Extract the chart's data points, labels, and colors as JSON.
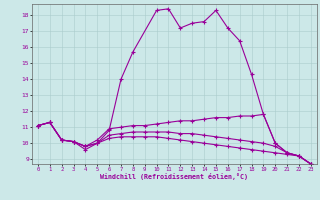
{
  "xlabel": "Windchill (Refroidissement éolien,°C)",
  "bg_color": "#cce8e8",
  "line_color": "#990099",
  "xlim": [
    -0.5,
    23.5
  ],
  "ylim": [
    8.7,
    18.7
  ],
  "yticks": [
    9,
    10,
    11,
    12,
    13,
    14,
    15,
    16,
    17,
    18
  ],
  "xticks": [
    0,
    1,
    2,
    3,
    4,
    5,
    6,
    7,
    8,
    9,
    10,
    11,
    12,
    13,
    14,
    15,
    16,
    17,
    18,
    19,
    20,
    21,
    22,
    23
  ],
  "series": [
    {
      "x": [
        0,
        1,
        2,
        3,
        4,
        5,
        6,
        7,
        8,
        10,
        11,
        12,
        13,
        14,
        15,
        16,
        17,
        18,
        19,
        20,
        21,
        22,
        23
      ],
      "y": [
        11.1,
        11.3,
        10.2,
        10.1,
        9.6,
        10.0,
        10.8,
        14.0,
        15.7,
        18.3,
        18.4,
        17.2,
        17.5,
        17.6,
        18.3,
        17.2,
        16.4,
        14.3,
        11.8,
        10.0,
        9.4,
        9.2,
        8.7
      ]
    },
    {
      "x": [
        0,
        1,
        2,
        3,
        4,
        5,
        6,
        7,
        8,
        9,
        10,
        11,
        12,
        13,
        14,
        15,
        16,
        17,
        18,
        19,
        20,
        21,
        22,
        23
      ],
      "y": [
        11.1,
        11.3,
        10.2,
        10.1,
        9.8,
        10.2,
        10.9,
        11.0,
        11.1,
        11.1,
        11.2,
        11.3,
        11.4,
        11.4,
        11.5,
        11.6,
        11.6,
        11.7,
        11.7,
        11.8,
        10.0,
        9.4,
        9.2,
        8.7
      ]
    },
    {
      "x": [
        0,
        1,
        2,
        3,
        4,
        5,
        6,
        7,
        8,
        9,
        10,
        11,
        12,
        13,
        14,
        15,
        16,
        17,
        18,
        19,
        20,
        21,
        22,
        23
      ],
      "y": [
        11.1,
        11.3,
        10.2,
        10.1,
        9.8,
        10.0,
        10.5,
        10.6,
        10.7,
        10.7,
        10.7,
        10.7,
        10.6,
        10.6,
        10.5,
        10.4,
        10.3,
        10.2,
        10.1,
        10.0,
        9.8,
        9.4,
        9.2,
        8.7
      ]
    },
    {
      "x": [
        0,
        1,
        2,
        3,
        4,
        5,
        6,
        7,
        8,
        9,
        10,
        11,
        12,
        13,
        14,
        15,
        16,
        17,
        18,
        19,
        20,
        21,
        22,
        23
      ],
      "y": [
        11.1,
        11.3,
        10.2,
        10.1,
        9.8,
        10.0,
        10.3,
        10.4,
        10.4,
        10.4,
        10.4,
        10.3,
        10.2,
        10.1,
        10.0,
        9.9,
        9.8,
        9.7,
        9.6,
        9.5,
        9.4,
        9.3,
        9.2,
        8.7
      ]
    }
  ]
}
